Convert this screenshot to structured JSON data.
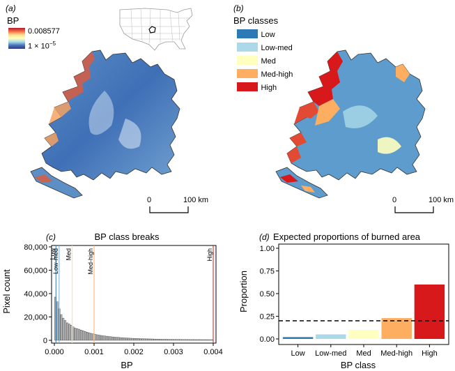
{
  "panel_a": {
    "letter": "(a)",
    "legend_title": "BP",
    "legend_max": "0.008577",
    "legend_min": "1 × 10",
    "legend_min_exp": "−5",
    "scale_start": "0",
    "scale_end": "100 km"
  },
  "panel_b": {
    "letter": "(b)",
    "legend_title": "BP classes",
    "scale_start": "0",
    "scale_end": "100 km",
    "classes": [
      {
        "label": "Low",
        "color": "#2c7bb6"
      },
      {
        "label": "Low-med",
        "color": "#abd9e9"
      },
      {
        "label": "Med",
        "color": "#ffffbf"
      },
      {
        "label": "Med-high",
        "color": "#fdae61"
      },
      {
        "label": "High",
        "color": "#d7191c"
      }
    ]
  },
  "panel_c": {
    "letter": "(c)",
    "title": "BP class breaks",
    "xlabel": "BP",
    "ylabel": "Pixel count",
    "x_ticks": [
      "0.000",
      "0.001",
      "0.002",
      "0.003",
      "0.004"
    ],
    "y_ticks": [
      "0",
      "20,000",
      "40,000",
      "60,000",
      "80,000"
    ]
  },
  "chart_data": [
    {
      "type": "bar",
      "title": "BP class breaks",
      "xlabel": "BP",
      "ylabel": "Pixel count",
      "xlim": [
        0,
        0.004
      ],
      "ylim": [
        0,
        80000
      ],
      "bin_width": 5e-05,
      "x": [
        2.5e-05,
        7.5e-05,
        0.000125,
        0.000175,
        0.000225,
        0.000275,
        0.000325,
        0.000375,
        0.000425,
        0.000475,
        0.000525,
        0.000575,
        0.000625,
        0.000675,
        0.000725,
        0.000775,
        0.000825,
        0.000875,
        0.000925,
        0.000975,
        0.001025,
        0.001075,
        0.001125,
        0.001175,
        0.001225,
        0.001275,
        0.001325,
        0.001375,
        0.001425,
        0.001475,
        0.001525,
        0.001575,
        0.001625,
        0.001675,
        0.001725,
        0.001775,
        0.001825,
        0.001875,
        0.001925,
        0.001975,
        0.002025,
        0.002075,
        0.002125,
        0.002175,
        0.002225,
        0.002275,
        0.002325,
        0.002375,
        0.002425,
        0.002475,
        0.002525,
        0.002575,
        0.002625,
        0.002675,
        0.002725,
        0.002775,
        0.002825,
        0.002875,
        0.002925,
        0.002975,
        0.003025,
        0.003075,
        0.003125,
        0.003175,
        0.003225,
        0.003275,
        0.003325,
        0.003375,
        0.003425,
        0.003475,
        0.003525,
        0.003575,
        0.003625,
        0.003675,
        0.003725,
        0.003775,
        0.003825,
        0.003875,
        0.003925,
        0.003975
      ],
      "values": [
        37000,
        33000,
        27000,
        22000,
        19000,
        17000,
        15000,
        14000,
        13000,
        11500,
        10500,
        10000,
        9500,
        8800,
        8200,
        7600,
        7000,
        6500,
        6000,
        5600,
        5200,
        4800,
        4500,
        4200,
        3900,
        3700,
        3500,
        3300,
        3100,
        2900,
        2700,
        2600,
        2500,
        2300,
        2200,
        2100,
        2000,
        1900,
        1800,
        1700,
        1650,
        1600,
        1500,
        1450,
        1400,
        1350,
        1300,
        1250,
        1200,
        1150,
        1100,
        1050,
        1000,
        950,
        900,
        880,
        860,
        840,
        820,
        800,
        780,
        760,
        740,
        720,
        700,
        690,
        680,
        670,
        660,
        650,
        640,
        630,
        620,
        610,
        600,
        590,
        580,
        570,
        560,
        550
      ],
      "class_breaks": [
        {
          "label": "Low",
          "value": 4e-05,
          "color": "#2c7bb6"
        },
        {
          "label": "Low-med",
          "value": 0.00012,
          "color": "#abd9e9"
        },
        {
          "label": "Med",
          "value": 0.00045,
          "color": "#ffffbf"
        },
        {
          "label": "Med-high",
          "value": 0.001,
          "color": "#fdae61"
        },
        {
          "label": "High",
          "value": 0.004,
          "color": "#d7191c"
        }
      ]
    },
    {
      "type": "bar",
      "title": "Expected proportions of burned area",
      "xlabel": "BP class",
      "ylabel": "Proportion",
      "categories": [
        "Low",
        "Low-med",
        "Med",
        "Med-high",
        "High"
      ],
      "values": [
        0.02,
        0.05,
        0.1,
        0.23,
        0.6
      ],
      "colors": [
        "#2c7bb6",
        "#abd9e9",
        "#ffffbf",
        "#fdae61",
        "#d7191c"
      ],
      "ylim": [
        0,
        1
      ],
      "reference_line": 0.2
    }
  ],
  "panel_d": {
    "letter": "(d)",
    "title": "Expected proportions of burned area",
    "xlabel": "BP class",
    "ylabel": "Proportion",
    "y_ticks": [
      "0.00",
      "0.25",
      "0.50",
      "0.75",
      "1.00"
    ]
  }
}
